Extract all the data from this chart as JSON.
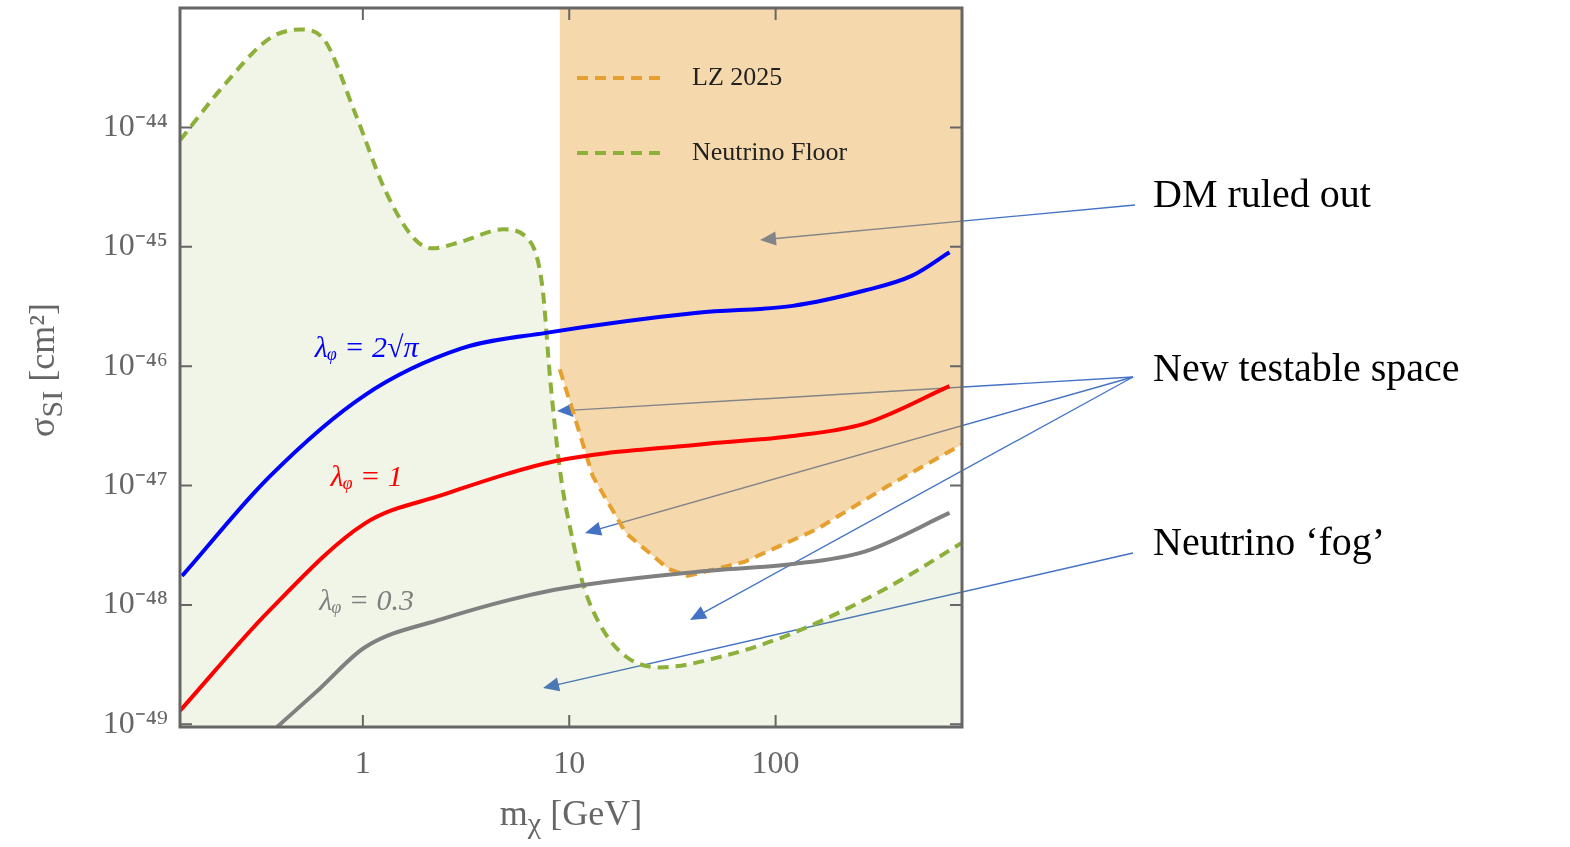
{
  "chart_data": {
    "type": "line",
    "xlabel": "m$_{χ}$ [GeV]",
    "ylabel": "σ$_{SI}$ [cm²]",
    "log": "xy",
    "grid": false,
    "legend": "top right",
    "marker": "none",
    "xlim": [
      0.13,
      800
    ],
    "xticks": [
      1,
      10,
      100
    ],
    "ylim": [
      9.5e-50,
      1e-43
    ],
    "yticks": [
      {
        "value": 1e-49,
        "label": "10⁻⁴⁹"
      },
      {
        "value": 1e-48,
        "label": "10⁻⁴⁸"
      },
      {
        "value": 1e-47,
        "label": "10⁻⁴⁷"
      },
      {
        "value": 1e-46,
        "label": "10⁻⁴⁶"
      },
      {
        "value": 1e-45,
        "label": "10⁻⁴⁵"
      },
      {
        "value": 1e-44,
        "label": "10⁻⁴⁴"
      }
    ],
    "series": [
      {
        "name": "LZ 2025",
        "type": "line",
        "color": "#e5a02f",
        "line_style": "dashed",
        "x": [
          9.0,
          10.5,
          13.0,
          18.8,
          30.3,
          37.5,
          70.8,
          158,
          349,
          796
        ],
        "values": [
          9.4e-47,
          4e-47,
          1.2e-47,
          4e-48,
          2e-48,
          1.75e-48,
          2.3e-48,
          4.3e-48,
          9.9e-48,
          2.2e-47
        ],
        "lower": [
          9.4e-47,
          4e-47,
          1.2e-47,
          4e-48,
          2e-48,
          1.75e-48,
          2.3e-48,
          4.3e-48,
          9.9e-48,
          2.2e-47
        ],
        "upper": [
          1e-43,
          1e-43,
          1e-43,
          1e-43,
          1e-43,
          1e-43,
          1e-43,
          1e-43,
          1e-43,
          1e-43
        ]
      },
      {
        "name": "Neutrino Floor",
        "type": "area",
        "color": "#8db03a",
        "line_style": "dashed",
        "x": [
          0.13,
          0.21,
          0.355,
          0.5,
          0.64,
          0.92,
          1.28,
          1.75,
          2.16,
          2.98,
          4.8,
          6.2,
          7.4,
          8.1,
          9.1,
          10.6,
          11.8,
          14.5,
          18.8,
          27.4,
          54.8,
          121,
          349,
          796
        ],
        "values": [
          7.8e-45,
          2.2e-44,
          5.6e-44,
          6.6e-44,
          5.6e-44,
          1.3e-44,
          3e-45,
          1.2e-45,
          9.7e-46,
          1.1e-45,
          1.4e-45,
          1.2e-45,
          4.7e-46,
          7.5e-47,
          1.2e-47,
          3e-48,
          1.4e-48,
          6.3e-49,
          3.7e-49,
          3e-49,
          3.7e-49,
          5.8e-49,
          1.4e-48,
          3.3e-48
        ]
      },
      {
        "name": "λᵩ = 2√π",
        "type": "line",
        "color": "#0000ff",
        "line_style": "solid",
        "x": [
          0.133,
          0.355,
          1.02,
          2.98,
          7.7,
          41.9,
          121,
          270,
          456,
          696
        ],
        "values": [
          1.75e-48,
          1.2e-47,
          5.7e-47,
          1.4e-46,
          1.9e-46,
          2.8e-46,
          3.2e-46,
          4.3e-46,
          5.7e-46,
          9e-46
        ]
      },
      {
        "name": "λᵩ = 1",
        "type": "line",
        "color": "#ff0000",
        "line_style": "solid",
        "x": [
          0.13,
          0.355,
          1.02,
          2.41,
          8.5,
          41.9,
          121,
          270,
          696
        ],
        "values": [
          1.3e-49,
          9.1e-49,
          4.8e-48,
          8.3e-48,
          1.6e-47,
          2.2e-47,
          2.6e-47,
          3.3e-47,
          6.8e-47
        ]
      },
      {
        "name": "λᵩ = 0.3",
        "type": "line",
        "color": "#808080",
        "line_style": "solid",
        "x": [
          0.384,
          0.62,
          1.02,
          2.41,
          8.5,
          41.9,
          121,
          270,
          696
        ],
        "values": [
          9.5e-50,
          2e-49,
          4.4e-49,
          7.6e-49,
          1.34e-48,
          1.9e-48,
          2.2e-48,
          2.8e-48,
          5.9e-48
        ]
      }
    ],
    "annotations": [
      "DM ruled out",
      "New testable space",
      "Neutrino ‘fog’"
    ]
  }
}
